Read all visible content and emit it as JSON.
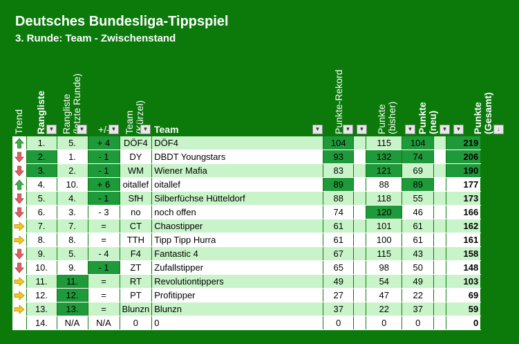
{
  "title": "Deutsches Bundesliga-Tippspiel",
  "subtitle": "3. Runde: Team - Zwischenstand",
  "headers": {
    "trend": "Trend",
    "rangliste": "Rangliste",
    "rangliste_letzte": "Rangliste (letzte Runde)",
    "plusminus": "+/-",
    "team_kuerzel": "Team (Kürzel)",
    "team": "Team",
    "punkte_rekord": "Punkte-Rekord",
    "punkte_bisher": "Punkte (bisher)",
    "punkte_neu": "Punkte (neu)",
    "punkte_gesamt": "Punkte (Gesamt)"
  },
  "colors": {
    "background": "#0b7a0b",
    "row_odd": "#c9f4c9",
    "row_even": "#ffffff",
    "highlight": "#1f9a3a",
    "trend_up": "#3cb043",
    "trend_down": "#e06060",
    "trend_same": "#f5c518"
  },
  "rows": [
    {
      "trend": "up",
      "rank": "1.",
      "prev": "5.",
      "diff": "+ 4",
      "abbr": "DÖF4",
      "team": "DÖF4",
      "rekord": "104",
      "bisher": "115",
      "neu": "104",
      "gesamt": "219"
    },
    {
      "trend": "down",
      "rank": "2.",
      "prev": "1.",
      "diff": "- 1",
      "abbr": "DY",
      "team": "DBDT Youngstars",
      "rekord": "93",
      "bisher": "132",
      "neu": "74",
      "gesamt": "206"
    },
    {
      "trend": "down",
      "rank": "3.",
      "prev": "2.",
      "diff": "- 1",
      "abbr": "WM",
      "team": "Wiener Mafia",
      "rekord": "83",
      "bisher": "121",
      "neu": "69",
      "gesamt": "190"
    },
    {
      "trend": "up",
      "rank": "4.",
      "prev": "10.",
      "diff": "+ 6",
      "abbr": "oitallef",
      "team": "oitallef",
      "rekord": "89",
      "bisher": "88",
      "neu": "89",
      "gesamt": "177"
    },
    {
      "trend": "down",
      "rank": "5.",
      "prev": "4.",
      "diff": "- 1",
      "abbr": "SfH",
      "team": "Silberfüchse Hütteldorf",
      "rekord": "88",
      "bisher": "118",
      "neu": "55",
      "gesamt": "173"
    },
    {
      "trend": "down",
      "rank": "6.",
      "prev": "3.",
      "diff": "- 3",
      "abbr": "no",
      "team": "noch offen",
      "rekord": "74",
      "bisher": "120",
      "neu": "46",
      "gesamt": "166"
    },
    {
      "trend": "same",
      "rank": "7.",
      "prev": "7.",
      "diff": "=",
      "abbr": "CT",
      "team": "Chaostipper",
      "rekord": "61",
      "bisher": "101",
      "neu": "61",
      "gesamt": "162"
    },
    {
      "trend": "same",
      "rank": "8.",
      "prev": "8.",
      "diff": "=",
      "abbr": "TTH",
      "team": "Tipp Tipp Hurra",
      "rekord": "61",
      "bisher": "100",
      "neu": "61",
      "gesamt": "161"
    },
    {
      "trend": "down",
      "rank": "9.",
      "prev": "5.",
      "diff": "- 4",
      "abbr": "F4",
      "team": "Fantastic 4",
      "rekord": "67",
      "bisher": "115",
      "neu": "43",
      "gesamt": "158"
    },
    {
      "trend": "down",
      "rank": "10.",
      "prev": "9.",
      "diff": "- 1",
      "abbr": "ZT",
      "team": "Zufallstipper",
      "rekord": "65",
      "bisher": "98",
      "neu": "50",
      "gesamt": "148"
    },
    {
      "trend": "same",
      "rank": "11.",
      "prev": "11.",
      "diff": "=",
      "abbr": "RT",
      "team": "Revolutiontippers",
      "rekord": "49",
      "bisher": "54",
      "neu": "49",
      "gesamt": "103"
    },
    {
      "trend": "same",
      "rank": "12.",
      "prev": "12.",
      "diff": "=",
      "abbr": "PT",
      "team": "Profitipper",
      "rekord": "27",
      "bisher": "47",
      "neu": "22",
      "gesamt": "69"
    },
    {
      "trend": "same",
      "rank": "13.",
      "prev": "13.",
      "diff": "=",
      "abbr": "Blunzn",
      "team": "Blunzn",
      "rekord": "37",
      "bisher": "22",
      "neu": "37",
      "gesamt": "59"
    },
    {
      "trend": "none",
      "rank": "14.",
      "prev": "N/A",
      "diff": "N/A",
      "abbr": "0",
      "team": "0",
      "rekord": "0",
      "bisher": "0",
      "neu": "0",
      "gesamt": "0"
    }
  ]
}
